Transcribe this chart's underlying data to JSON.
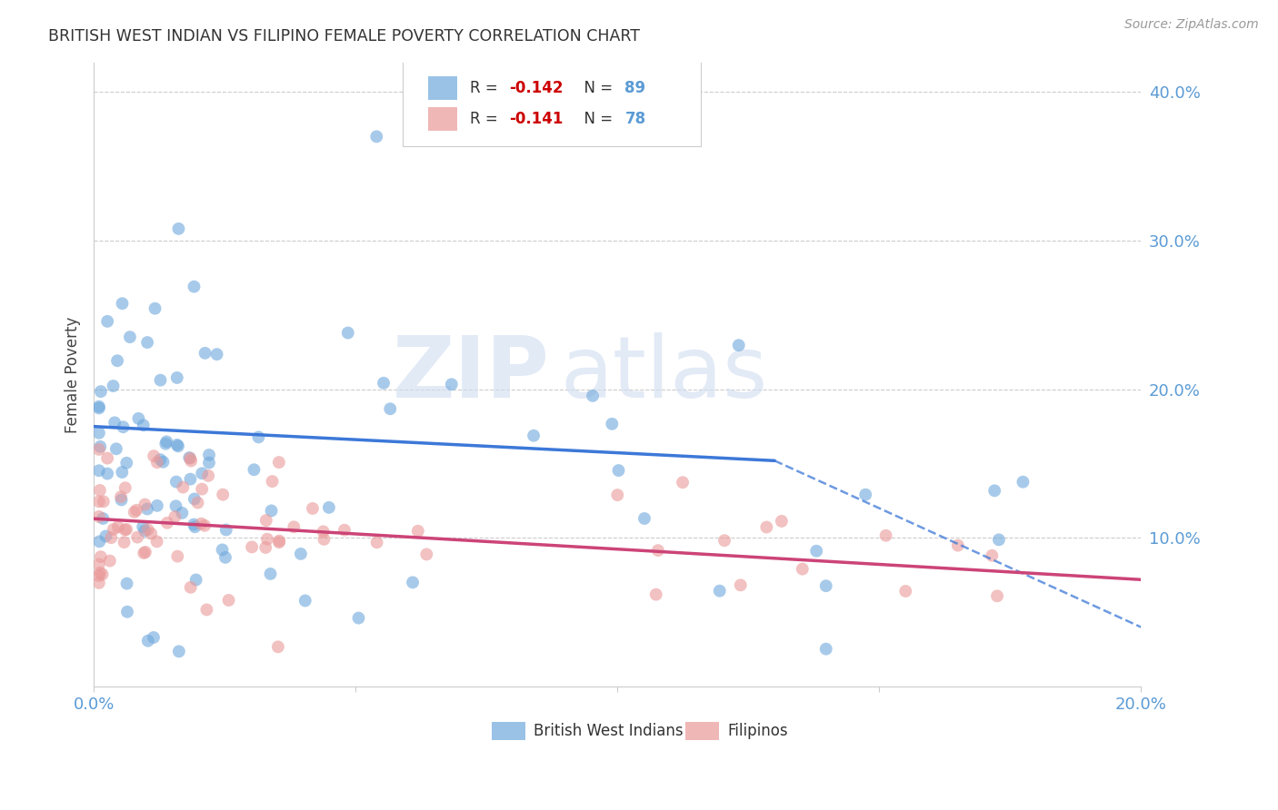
{
  "title": "BRITISH WEST INDIAN VS FILIPINO FEMALE POVERTY CORRELATION CHART",
  "source": "Source: ZipAtlas.com",
  "ylabel": "Female Poverty",
  "xmin": 0.0,
  "xmax": 0.2,
  "ymin": 0.0,
  "ymax": 0.42,
  "yticks": [
    0.1,
    0.2,
    0.3,
    0.4
  ],
  "xticks": [
    0.0,
    0.05,
    0.1,
    0.15,
    0.2
  ],
  "ytick_labels": [
    "10.0%",
    "20.0%",
    "30.0%",
    "40.0%"
  ],
  "blue_R": -0.142,
  "blue_N": 89,
  "pink_R": -0.141,
  "pink_N": 78,
  "blue_color": "#6fa8dc",
  "pink_color": "#ea9999",
  "blue_line_color": "#3c78d8",
  "pink_line_color": "#cc4477",
  "legend_label_blue": "British West Indians",
  "legend_label_pink": "Filipinos",
  "watermark_zip": "ZIP",
  "watermark_atlas": "atlas",
  "title_fontsize": 13,
  "tick_label_fontsize": 13,
  "axis_label_color": "#5b9bd5",
  "r_color": "#cc0000",
  "n_color": "#5b9bd5"
}
